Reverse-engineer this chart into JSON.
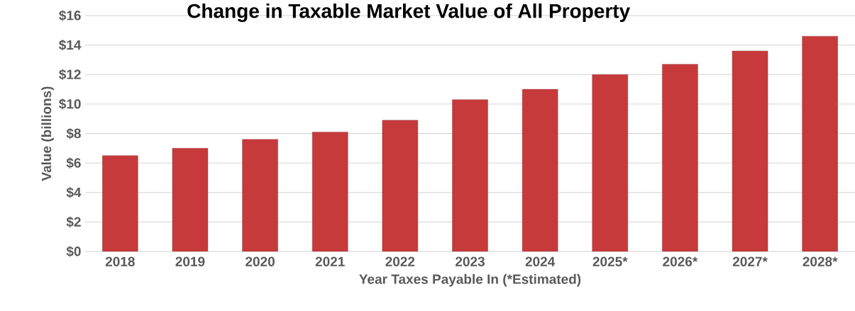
{
  "chart_data": {
    "type": "bar",
    "title": "Change in Taxable Market Value of All Property",
    "xlabel": "Year Taxes Payable In (*Estimated)",
    "ylabel": "Value (billions)",
    "categories": [
      "2018",
      "2019",
      "2020",
      "2021",
      "2022",
      "2023",
      "2024",
      "2025*",
      "2026*",
      "2027*",
      "2028*"
    ],
    "values": [
      6.5,
      7.0,
      7.6,
      8.1,
      8.9,
      10.3,
      11.0,
      12.0,
      12.7,
      13.6,
      14.6
    ],
    "color": "#c73a3b",
    "ylim": [
      0,
      16
    ],
    "yticks": [
      {
        "value": 0,
        "label": "$0"
      },
      {
        "value": 2,
        "label": "$2"
      },
      {
        "value": 4,
        "label": "$4"
      },
      {
        "value": 6,
        "label": "$6"
      },
      {
        "value": 8,
        "label": "$8"
      },
      {
        "value": 10,
        "label": "$10"
      },
      {
        "value": 12,
        "label": "$12"
      },
      {
        "value": 14,
        "label": "$14"
      },
      {
        "value": 16,
        "label": "$16"
      }
    ],
    "grid": "y"
  }
}
